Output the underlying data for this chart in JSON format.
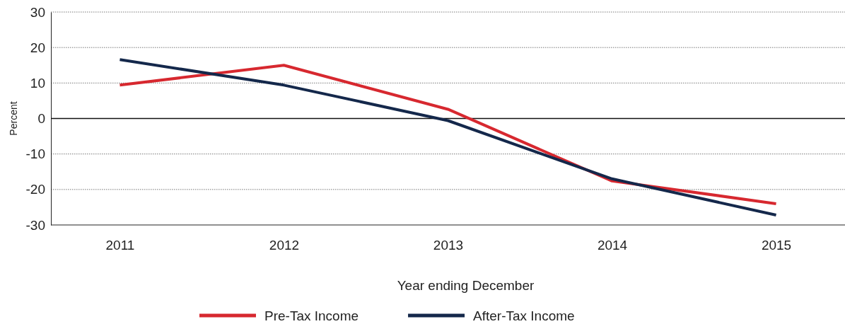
{
  "chart_data": {
    "type": "line",
    "xlabel": "Year ending December",
    "ylabel": "Percent",
    "categories": [
      "2011",
      "2012",
      "2013",
      "2014",
      "2015"
    ],
    "series": [
      {
        "name": "Pre-Tax Income",
        "color": "#d7282f",
        "values": [
          9.4,
          15,
          2.6,
          -17.6,
          -24
        ]
      },
      {
        "name": "After-Tax Income",
        "color": "#14284b",
        "values": [
          16.6,
          9.4,
          -0.6,
          -17,
          -27.2
        ]
      }
    ],
    "ylim": [
      -30,
      30
    ],
    "yticks": [
      -30,
      -20,
      -10,
      0,
      10,
      20,
      30
    ],
    "grid": "y",
    "legend": "bottom",
    "marker": "none",
    "line_style": "solid"
  }
}
